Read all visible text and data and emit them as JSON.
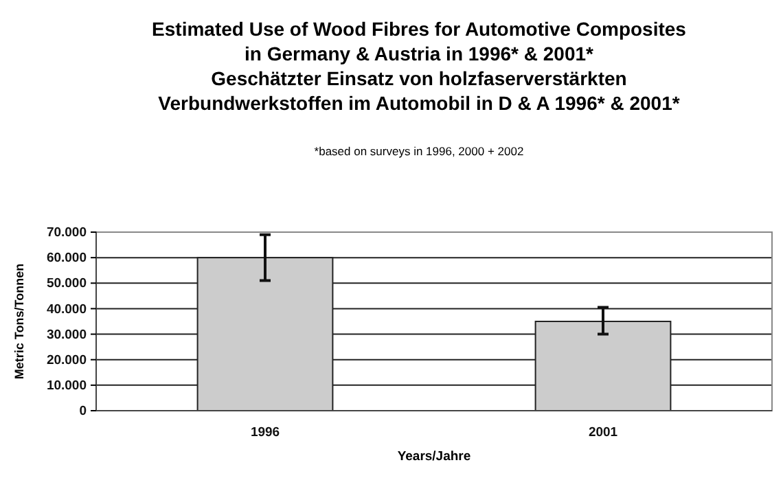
{
  "chart_data": {
    "type": "bar",
    "title": "Estimated Use of Wood Fibres for Automotive Composites\nin Germany & Austria in 1996* & 2001*\nGeschätzter Einsatz von holzfaserverstärkten\nVerbundwerkstoffen im Automobil in D & A 1996* & 2001*",
    "subtitle": "*based on surveys in 1996, 2000 + 2002",
    "xlabel": "Years/Jahre",
    "ylabel": "Metric Tons/Tonnen",
    "categories": [
      "1996",
      "2001"
    ],
    "values": [
      60000,
      35000
    ],
    "errors": [
      [
        51000,
        69000
      ],
      [
        30000,
        40500
      ]
    ],
    "color": "#cccccc",
    "ylim": [
      0,
      70000
    ],
    "yticks": [
      {
        "value": 0,
        "label": "0"
      },
      {
        "value": 10000,
        "label": "10.000"
      },
      {
        "value": 20000,
        "label": "20.000"
      },
      {
        "value": 30000,
        "label": "30.000"
      },
      {
        "value": 40000,
        "label": "40.000"
      },
      {
        "value": 50000,
        "label": "50.000"
      },
      {
        "value": 60000,
        "label": "60.000"
      },
      {
        "value": 70000,
        "label": "70.000"
      }
    ],
    "grid": "y"
  }
}
